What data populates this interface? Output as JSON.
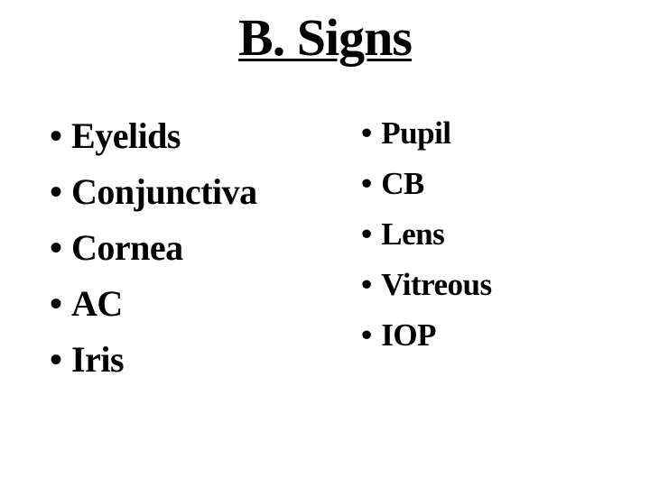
{
  "title": "B. Signs",
  "title_fontsize": 58,
  "left_column": [
    "Eyelids",
    "Conjunctiva",
    "Cornea",
    "AC",
    "Iris"
  ],
  "right_column": [
    "Pupil",
    "CB",
    "Lens",
    "Vitreous",
    "IOP"
  ],
  "left_item_fontsize": 40,
  "right_item_fontsize": 35,
  "left_line_height": 62,
  "right_line_height": 56,
  "text_color": "#000000",
  "background_color": "#ffffff",
  "bullet_char": "•"
}
